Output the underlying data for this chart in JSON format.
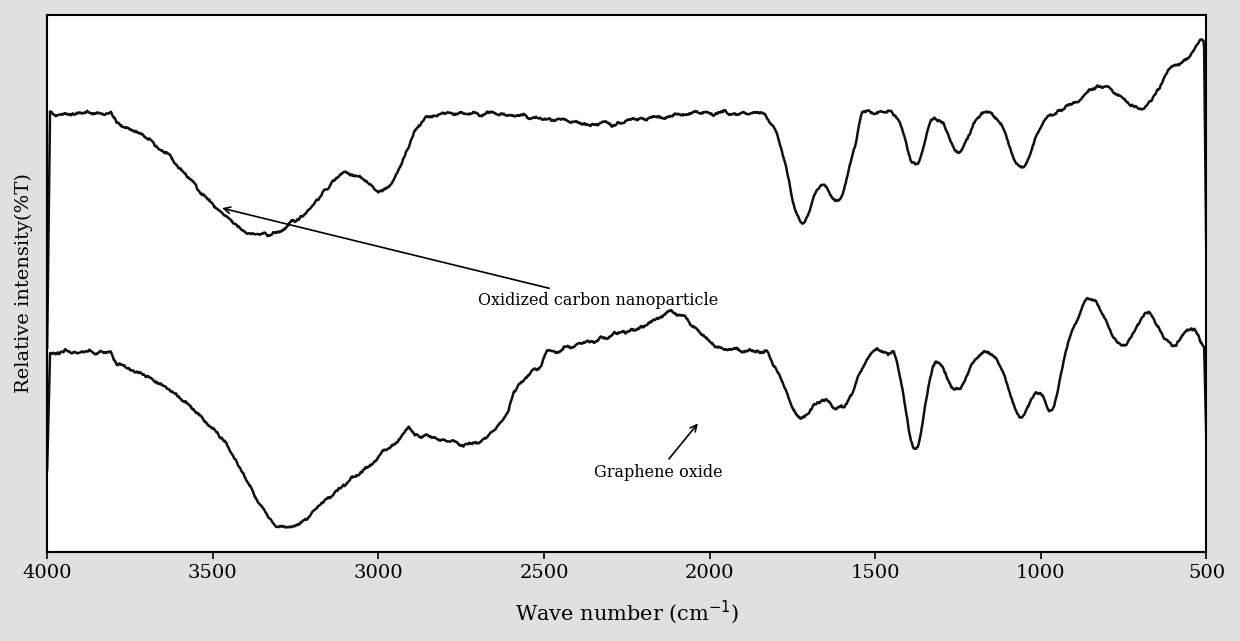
{
  "ylabel": "Relative intensity(%T)",
  "background_color": "#e0e0e0",
  "plot_bg": "#ffffff",
  "line_color": "#111111",
  "label_ocn": "Oxidized carbon nanoparticle",
  "label_go": "Graphene oxide",
  "xticks": [
    4000,
    3500,
    3000,
    2500,
    2000,
    1500,
    1000,
    500
  ],
  "xtick_labels": [
    "4000",
    "3500",
    "3000",
    "2500",
    "2000",
    "1500",
    "1000",
    "500"
  ]
}
